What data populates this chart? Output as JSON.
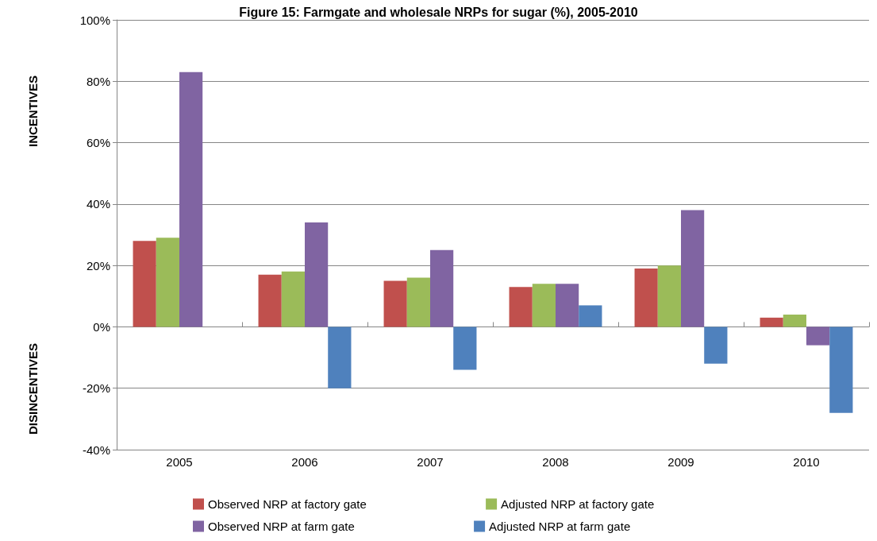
{
  "chart_data": {
    "type": "bar",
    "title": "Figure 15: Farmgate and wholesale NRPs for sugar (%), 2005-2010",
    "ylabel": "INCENTIVES",
    "annotations": [
      "DISINCENTIVES"
    ],
    "categories": [
      "2005",
      "2006",
      "2007",
      "2008",
      "2009",
      "2010"
    ],
    "series": [
      {
        "name": "Observed NRP at factory gate",
        "color": "#c0504d",
        "values": [
          28,
          17,
          15,
          13,
          19,
          3
        ]
      },
      {
        "name": "Adjusted NRP at factory gate",
        "color": "#9bbb59",
        "values": [
          29,
          18,
          16,
          14,
          20,
          4
        ]
      },
      {
        "name": "Observed NRP at farm gate",
        "color": "#8064a2",
        "values": [
          83,
          34,
          25,
          14,
          38,
          -6
        ]
      },
      {
        "name": "Adjusted NRP at farm gate",
        "color": "#4f81bd",
        "values": [
          0,
          -20,
          -14,
          7,
          -12,
          -28
        ]
      }
    ],
    "ylim": [
      -40,
      100
    ],
    "yticks": [
      {
        "value": -40,
        "label": "-40%"
      },
      {
        "value": -20,
        "label": "-20%"
      },
      {
        "value": 0,
        "label": "0%"
      },
      {
        "value": 20,
        "label": "20%"
      },
      {
        "value": 40,
        "label": "40%"
      },
      {
        "value": 60,
        "label": "60%"
      },
      {
        "value": 80,
        "label": "80%"
      },
      {
        "value": 100,
        "label": "100%"
      }
    ],
    "grid": "y",
    "legend": "bottom"
  }
}
